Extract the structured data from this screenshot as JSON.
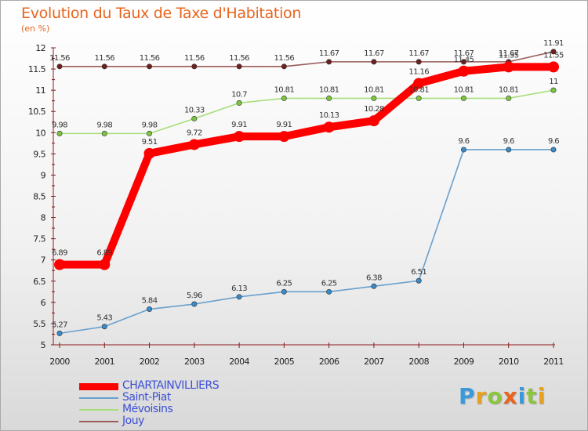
{
  "title": "Evolution du Taux de Taxe d'Habitation",
  "subtitle": "(en %)",
  "logo": {
    "letters": [
      "P",
      "r",
      "o",
      "x",
      "i",
      "t",
      "i"
    ],
    "colors": [
      "#3a9ad9",
      "#e8a01f",
      "#8cc63f",
      "#e8651f",
      "#3a9ad9",
      "#8cc63f",
      "#e8a01f"
    ]
  },
  "chart_data": {
    "type": "line",
    "title": "Evolution du Taux de Taxe d'Habitation",
    "ylabel": "(en %)",
    "xlabel": "",
    "categories": [
      "2000",
      "2001",
      "2002",
      "2003",
      "2004",
      "2005",
      "2006",
      "2007",
      "2008",
      "2009",
      "2010",
      "2011"
    ],
    "ylim": [
      5,
      12
    ],
    "yticks": [
      "5",
      "5.5",
      "6",
      "6.5",
      "7",
      "7.5",
      "8",
      "8.5",
      "9",
      "9.5",
      "10",
      "10.5",
      "11",
      "11.5",
      "12"
    ],
    "grid": false,
    "legend_position": "bottom-left",
    "series": [
      {
        "name": "CHARTAINVILLIERS",
        "color": "#ff0000",
        "emphasis": true,
        "values": [
          6.89,
          6.89,
          9.51,
          9.72,
          9.91,
          9.91,
          10.13,
          10.28,
          11.16,
          11.45,
          11.55,
          11.55
        ],
        "labels": [
          "6.89",
          "6.89",
          "9.51",
          "9.72",
          "9.91",
          "9.91",
          "10.13",
          "10.28",
          "11.16",
          "11.45",
          "11.55",
          "11.55"
        ]
      },
      {
        "name": "Saint-Piat",
        "color": "#6aa0cc",
        "point_color": "#3a8ac8",
        "emphasis": false,
        "values": [
          5.27,
          5.43,
          5.84,
          5.96,
          6.13,
          6.25,
          6.25,
          6.38,
          6.51,
          9.6,
          9.6,
          9.6
        ],
        "labels": [
          "5.27",
          "5.43",
          "5.84",
          "5.96",
          "6.13",
          "6.25",
          "6.25",
          "6.38",
          "6.51",
          "9.6",
          "9.6",
          "9.6"
        ]
      },
      {
        "name": "Mévoisins",
        "color": "#a6df7a",
        "point_color": "#7cc63f",
        "emphasis": false,
        "values": [
          9.98,
          9.98,
          9.98,
          10.33,
          10.7,
          10.81,
          10.81,
          10.81,
          10.81,
          10.81,
          10.81,
          11.0
        ],
        "labels": [
          "9.98",
          "9.98",
          "9.98",
          "10.33",
          "10.7",
          "10.81",
          "10.81",
          "10.81",
          "10.81",
          "10.81",
          "10.81",
          "11"
        ]
      },
      {
        "name": "Jouy",
        "color": "#9c5a5a",
        "point_color": "#6e1f1f",
        "emphasis": false,
        "values": [
          11.56,
          11.56,
          11.56,
          11.56,
          11.56,
          11.56,
          11.67,
          11.67,
          11.67,
          11.67,
          11.67,
          11.91
        ],
        "labels": [
          "11.56",
          "11.56",
          "11.56",
          "11.56",
          "11.56",
          "11.56",
          "11.67",
          "11.67",
          "11.67",
          "11.67",
          "11.67",
          "11.91"
        ]
      }
    ]
  }
}
